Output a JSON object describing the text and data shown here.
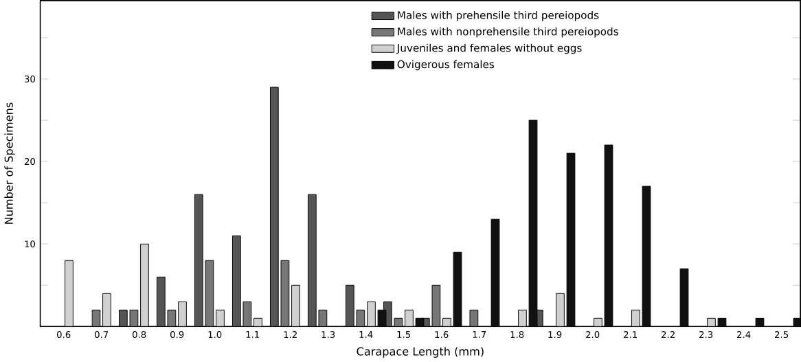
{
  "chart_data": {
    "type": "bar",
    "xlabel": "Carapace Length (mm)",
    "ylabel": "Number of Specimens",
    "categories": [
      "0.6",
      "0.7",
      "0.8",
      "0.9",
      "1.0",
      "1.1",
      "1.2",
      "1.3",
      "1.4",
      "1.5",
      "1.6",
      "1.7",
      "1.8",
      "1.9",
      "2.0",
      "2.1",
      "2.2",
      "2.3",
      "2.4",
      "2.5"
    ],
    "series": [
      {
        "name": "Males with prehensile third pereiopods",
        "color": "#555555",
        "values": [
          0,
          0,
          2,
          6,
          16,
          11,
          29,
          16,
          5,
          3,
          1,
          0,
          0,
          2,
          0,
          0,
          0,
          0,
          0,
          0
        ]
      },
      {
        "name": "Males with nonprehensile third pereiopods",
        "color": "#777777",
        "values": [
          0,
          2,
          2,
          2,
          8,
          3,
          8,
          2,
          2,
          1,
          5,
          2,
          0,
          0,
          0,
          0,
          0,
          0,
          0,
          0
        ]
      },
      {
        "name": "Juveniles and females without eggs",
        "color": "#d0d0d0",
        "values": [
          8,
          4,
          10,
          3,
          2,
          1,
          5,
          0,
          3,
          2,
          1,
          0,
          2,
          4,
          1,
          2,
          0,
          1,
          0,
          0
        ]
      },
      {
        "name": "Ovigerous females",
        "color": "#111111",
        "values": [
          0,
          0,
          0,
          0,
          0,
          0,
          0,
          0,
          2,
          1,
          9,
          13,
          25,
          21,
          22,
          17,
          7,
          1,
          1,
          1
        ]
      }
    ],
    "ylim": [
      0,
      39.5
    ],
    "yticks": [
      {
        "value": 5,
        "label": null
      },
      10,
      {
        "value": 15,
        "label": null
      },
      20,
      {
        "value": 25,
        "label": null
      },
      30,
      {
        "value": 35,
        "label": null
      }
    ],
    "grid": false,
    "legend": "top"
  }
}
